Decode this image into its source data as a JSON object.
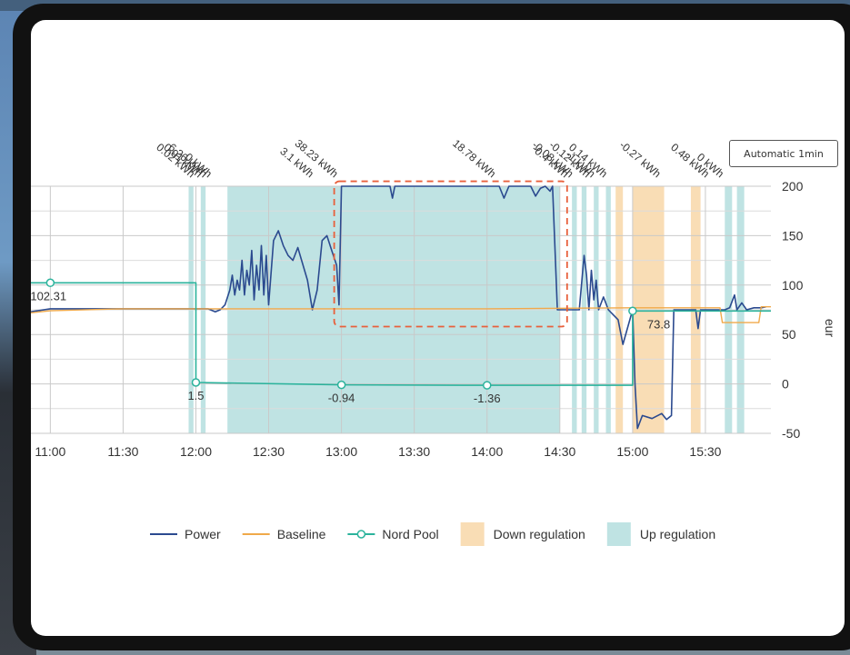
{
  "controls": {
    "refresh_label": "Automatic 1min"
  },
  "colors": {
    "power": "#2b4a8f",
    "baseline": "#f0a94a",
    "nordpool": "#2bb39c",
    "down_regulation": "#f9ddb5",
    "up_regulation": "#bfe3e3",
    "highlight": "#e8603c"
  },
  "chart_data": {
    "type": "line",
    "x_ticks": [
      "11:00",
      "11:30",
      "12:00",
      "12:30",
      "13:00",
      "13:30",
      "14:00",
      "14:30",
      "15:00",
      "15:30"
    ],
    "x_range": [
      "10:52",
      "15:57"
    ],
    "y_axis": {
      "label": "eur",
      "ticks": [
        200,
        150,
        100,
        50,
        0,
        -50
      ],
      "range": [
        -50,
        200
      ],
      "side": "right"
    },
    "grid": true,
    "legend_position": "bottom",
    "series": [
      {
        "name": "Power",
        "points": [
          [
            "10:52",
            73
          ],
          [
            "11:00",
            76
          ],
          [
            "11:30",
            76
          ],
          [
            "12:00",
            76
          ],
          [
            "12:05",
            76
          ],
          [
            "12:08",
            73
          ],
          [
            "12:10",
            75
          ],
          [
            "12:12",
            80
          ],
          [
            "12:14",
            95
          ],
          [
            "12:15",
            110
          ],
          [
            "12:16",
            90
          ],
          [
            "12:17",
            105
          ],
          [
            "12:18",
            95
          ],
          [
            "12:19",
            125
          ],
          [
            "12:20",
            90
          ],
          [
            "12:21",
            115
          ],
          [
            "12:22",
            100
          ],
          [
            "12:23",
            135
          ],
          [
            "12:24",
            85
          ],
          [
            "12:25",
            120
          ],
          [
            "12:26",
            95
          ],
          [
            "12:27",
            140
          ],
          [
            "12:28",
            90
          ],
          [
            "12:29",
            130
          ],
          [
            "12:30",
            80
          ],
          [
            "12:32",
            145
          ],
          [
            "12:34",
            155
          ],
          [
            "12:36",
            140
          ],
          [
            "12:38",
            130
          ],
          [
            "12:40",
            125
          ],
          [
            "12:42",
            138
          ],
          [
            "12:46",
            105
          ],
          [
            "12:48",
            75
          ],
          [
            "12:50",
            95
          ],
          [
            "12:52",
            145
          ],
          [
            "12:54",
            150
          ],
          [
            "12:56",
            135
          ],
          [
            "12:58",
            120
          ],
          [
            "12:59",
            80
          ],
          [
            "13:00",
            200
          ],
          [
            "13:10",
            200
          ],
          [
            "13:20",
            200
          ],
          [
            "13:21",
            188
          ],
          [
            "13:22",
            200
          ],
          [
            "13:40",
            200
          ],
          [
            "14:00",
            200
          ],
          [
            "14:05",
            200
          ],
          [
            "14:07",
            188
          ],
          [
            "14:09",
            200
          ],
          [
            "14:18",
            200
          ],
          [
            "14:20",
            190
          ],
          [
            "14:22",
            198
          ],
          [
            "14:24",
            200
          ],
          [
            "14:26",
            195
          ],
          [
            "14:27",
            200
          ],
          [
            "14:29",
            75
          ],
          [
            "14:35",
            75
          ],
          [
            "14:38",
            75
          ],
          [
            "14:40",
            130
          ],
          [
            "14:41",
            110
          ],
          [
            "14:42",
            75
          ],
          [
            "14:43",
            115
          ],
          [
            "14:44",
            85
          ],
          [
            "14:45",
            105
          ],
          [
            "14:46",
            75
          ],
          [
            "14:48",
            88
          ],
          [
            "14:50",
            75
          ],
          [
            "14:52",
            70
          ],
          [
            "14:54",
            65
          ],
          [
            "14:56",
            40
          ],
          [
            "15:00",
            75
          ],
          [
            "15:01",
            0
          ],
          [
            "15:02",
            -45
          ],
          [
            "15:04",
            -32
          ],
          [
            "15:08",
            -35
          ],
          [
            "15:12",
            -30
          ],
          [
            "15:14",
            -36
          ],
          [
            "15:16",
            -32
          ],
          [
            "15:17",
            75
          ],
          [
            "15:20",
            75
          ],
          [
            "15:26",
            75
          ],
          [
            "15:27",
            56
          ],
          [
            "15:28",
            75
          ],
          [
            "15:32",
            75
          ],
          [
            "15:38",
            75
          ],
          [
            "15:40",
            77
          ],
          [
            "15:42",
            90
          ],
          [
            "15:43",
            75
          ],
          [
            "15:45",
            82
          ],
          [
            "15:47",
            75
          ],
          [
            "15:50",
            77
          ],
          [
            "15:53",
            77
          ],
          [
            "15:55",
            78
          ]
        ]
      },
      {
        "name": "Baseline",
        "points": [
          [
            "10:52",
            72
          ],
          [
            "11:00",
            74
          ],
          [
            "11:30",
            76
          ],
          [
            "12:00",
            76
          ],
          [
            "14:00",
            76
          ],
          [
            "15:00",
            77
          ],
          [
            "15:36",
            77
          ],
          [
            "15:37",
            62
          ],
          [
            "15:52",
            62
          ],
          [
            "15:53",
            78
          ],
          [
            "15:57",
            78
          ]
        ]
      },
      {
        "name": "Nord Pool",
        "points": [
          [
            "10:52",
            102.31
          ],
          [
            "12:00",
            102.31
          ],
          [
            "12:00",
            1.5
          ],
          [
            "13:00",
            -0.94
          ],
          [
            "14:00",
            -1.36
          ],
          [
            "15:00",
            -1.36
          ],
          [
            "15:00",
            73.8
          ],
          [
            "15:57",
            73.8
          ]
        ],
        "markers": [
          [
            "11:00",
            102.31
          ],
          [
            "12:00",
            1.5
          ],
          [
            "13:00",
            -0.94
          ],
          [
            "14:00",
            -1.36
          ],
          [
            "15:00",
            73.8
          ]
        ],
        "labels": [
          "102.31",
          "1.5",
          "-0.94",
          "-1.36",
          "73.8"
        ]
      }
    ],
    "up_regulation_periods": [
      [
        "11:57",
        "11:59"
      ],
      [
        "12:02",
        "12:04"
      ],
      [
        "12:13",
        "14:30"
      ],
      [
        "14:35",
        "14:37"
      ],
      [
        "14:39",
        "14:41"
      ],
      [
        "14:44",
        "14:46"
      ],
      [
        "14:49",
        "14:51"
      ],
      [
        "15:38",
        "15:41"
      ],
      [
        "15:43",
        "15:46"
      ]
    ],
    "down_regulation_periods": [
      [
        "14:53",
        "14:56"
      ],
      [
        "15:00",
        "15:13"
      ],
      [
        "15:24",
        "15:28"
      ]
    ],
    "annotations": [
      {
        "text": "0.02 kWh",
        "x": "11:58"
      },
      {
        "text": "0.01 kWh",
        "x": "12:01"
      },
      {
        "text": "6.26 kWh",
        "x": "12:03"
      },
      {
        "text": "0 kWh",
        "x": "12:05"
      },
      {
        "text": "3.1 kWh",
        "x": "12:47"
      },
      {
        "text": "38.23 kWh",
        "x": "12:57"
      },
      {
        "text": "18.78 kWh",
        "x": "14:02"
      },
      {
        "text": "-0.4 kWh",
        "x": "14:32"
      },
      {
        "text": "-0.08 kWh",
        "x": "14:34"
      },
      {
        "text": "-0.12 kWh",
        "x": "14:41"
      },
      {
        "text": "-1 kWh",
        "x": "14:43"
      },
      {
        "text": "0.14 kWh",
        "x": "14:48"
      },
      {
        "text": "-0.27 kWh",
        "x": "15:10"
      },
      {
        "text": "0.48 kWh",
        "x": "15:30"
      },
      {
        "text": "0 kWh",
        "x": "15:36"
      }
    ],
    "highlight_box": {
      "x": [
        "12:57",
        "14:33"
      ],
      "y": [
        58,
        205
      ]
    },
    "legend": [
      "Power",
      "Baseline",
      "Nord Pool",
      "Down regulation",
      "Up regulation"
    ]
  }
}
